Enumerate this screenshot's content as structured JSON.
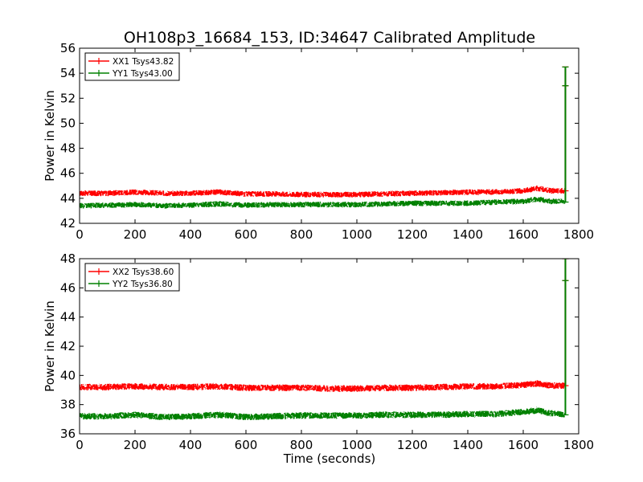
{
  "chart_data": [
    {
      "type": "line",
      "title": "OH108p3_16684_153, ID:34647 Calibrated Amplitude",
      "xlabel": "",
      "ylabel": "Power in Kelvin",
      "xlim": [
        0,
        1800
      ],
      "ylim": [
        42,
        56
      ],
      "x_ticks": [
        0,
        200,
        400,
        600,
        800,
        1000,
        1200,
        1400,
        1600,
        1800
      ],
      "y_ticks": [
        42,
        44,
        46,
        48,
        50,
        52,
        54,
        56
      ],
      "legend_position": "top-left",
      "grid": false,
      "series": [
        {
          "name": "XX1 Tsys43.82",
          "color": "#ff0000",
          "x": [
            0,
            100,
            200,
            300,
            400,
            500,
            600,
            700,
            800,
            900,
            1000,
            1100,
            1200,
            1300,
            1400,
            1500,
            1600,
            1650,
            1700,
            1750
          ],
          "values": [
            44.4,
            44.4,
            44.5,
            44.4,
            44.4,
            44.5,
            44.35,
            44.35,
            44.3,
            44.3,
            44.3,
            44.35,
            44.4,
            44.45,
            44.5,
            44.5,
            44.6,
            44.8,
            44.6,
            44.6
          ],
          "spike": {
            "x": 1752,
            "low": 44.6,
            "high": 54.5
          }
        },
        {
          "name": "YY1 Tsys43.00",
          "color": "#008000",
          "x": [
            0,
            100,
            200,
            300,
            400,
            500,
            600,
            700,
            800,
            900,
            1000,
            1100,
            1200,
            1300,
            1400,
            1500,
            1600,
            1650,
            1700,
            1750
          ],
          "values": [
            43.4,
            43.45,
            43.5,
            43.4,
            43.45,
            43.55,
            43.45,
            43.5,
            43.5,
            43.5,
            43.5,
            43.55,
            43.6,
            43.6,
            43.6,
            43.7,
            43.75,
            43.95,
            43.75,
            43.75
          ],
          "spike": {
            "x": 1752,
            "low": 43.7,
            "high": 54.5
          }
        }
      ]
    },
    {
      "type": "line",
      "title": "",
      "xlabel": "Time (seconds)",
      "ylabel": "Power in Kelvin",
      "xlim": [
        0,
        1800
      ],
      "ylim": [
        36,
        48
      ],
      "x_ticks": [
        0,
        200,
        400,
        600,
        800,
        1000,
        1200,
        1400,
        1600,
        1800
      ],
      "y_ticks": [
        36,
        38,
        40,
        42,
        44,
        46,
        48
      ],
      "legend_position": "top-left",
      "grid": false,
      "series": [
        {
          "name": "XX2 Tsys38.60",
          "color": "#ff0000",
          "x": [
            0,
            100,
            200,
            300,
            400,
            500,
            600,
            700,
            800,
            900,
            1000,
            1100,
            1200,
            1300,
            1400,
            1500,
            1600,
            1650,
            1700,
            1750
          ],
          "values": [
            39.2,
            39.2,
            39.25,
            39.2,
            39.2,
            39.25,
            39.15,
            39.15,
            39.15,
            39.1,
            39.1,
            39.15,
            39.15,
            39.2,
            39.25,
            39.25,
            39.35,
            39.45,
            39.3,
            39.3
          ],
          "spike": {
            "x": 1752,
            "low": 39.3,
            "high": 48.0
          }
        },
        {
          "name": "YY2 Tsys36.80",
          "color": "#008000",
          "x": [
            0,
            100,
            200,
            300,
            400,
            500,
            600,
            700,
            800,
            900,
            1000,
            1100,
            1200,
            1300,
            1400,
            1500,
            1600,
            1650,
            1700,
            1750
          ],
          "values": [
            37.2,
            37.2,
            37.3,
            37.15,
            37.2,
            37.3,
            37.15,
            37.2,
            37.25,
            37.25,
            37.25,
            37.3,
            37.3,
            37.3,
            37.35,
            37.35,
            37.5,
            37.6,
            37.4,
            37.3
          ],
          "spike": {
            "x": 1752,
            "low": 37.3,
            "high": 48.0
          }
        }
      ]
    }
  ]
}
